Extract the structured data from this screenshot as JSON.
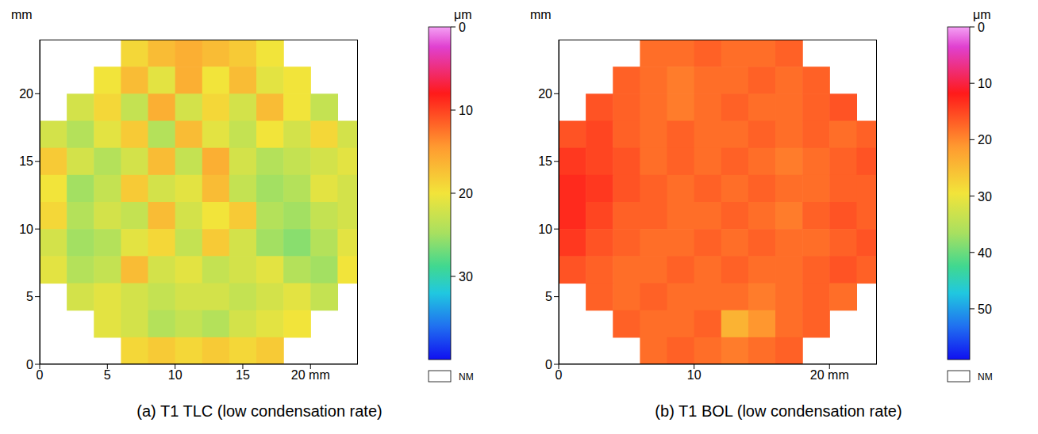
{
  "chart_data": [
    {
      "type": "heatmap",
      "title": "(a) T1 TLC (low condensation rate)",
      "ylabel": "mm",
      "xlim": [
        0,
        23.5
      ],
      "ylim": [
        0,
        24
      ],
      "xticks": [
        0,
        5,
        10,
        15,
        {
          "value": 20,
          "label": "20 mm"
        }
      ],
      "yticks": [
        0,
        5,
        10,
        15,
        20
      ],
      "x": [
        1,
        3,
        5,
        7,
        9,
        11,
        13,
        15,
        17,
        19,
        21,
        23
      ],
      "y": [
        23,
        21,
        19,
        17,
        15,
        13,
        11,
        9,
        7,
        5,
        3,
        1
      ],
      "cells": [
        [
          null,
          null,
          null,
          19,
          17,
          16,
          17,
          18,
          20,
          null,
          null,
          null
        ],
        [
          null,
          null,
          20,
          17,
          21,
          16,
          20,
          17,
          21,
          20,
          null,
          null
        ],
        [
          null,
          22,
          19,
          23,
          16,
          22,
          19,
          22,
          17,
          20,
          23,
          null
        ],
        [
          22,
          24,
          21,
          18,
          24,
          17,
          21,
          23,
          20,
          22,
          19,
          22
        ],
        [
          18,
          22,
          24,
          22,
          17,
          23,
          16,
          22,
          24,
          23,
          22,
          21
        ],
        [
          20,
          25,
          23,
          18,
          22,
          21,
          17,
          23,
          25,
          24,
          21,
          22
        ],
        [
          19,
          24,
          22,
          23,
          17,
          22,
          20,
          18,
          24,
          25,
          23,
          22
        ],
        [
          22,
          25,
          24,
          21,
          19,
          23,
          18,
          22,
          25,
          26,
          24,
          21
        ],
        [
          21,
          24,
          23,
          17,
          22,
          21,
          23,
          22,
          21,
          24,
          25,
          20
        ],
        [
          null,
          22,
          21,
          22,
          23,
          22,
          22,
          23,
          22,
          21,
          23,
          null
        ],
        [
          null,
          null,
          21,
          22,
          24,
          23,
          24,
          22,
          21,
          20,
          null,
          null
        ],
        [
          null,
          null,
          null,
          19,
          18,
          19,
          18,
          19,
          18,
          null,
          null,
          null
        ]
      ],
      "colorbar": {
        "label": "μm",
        "range": [
          0,
          40
        ],
        "ticks": [
          0,
          10,
          20,
          30
        ]
      },
      "missing_label": "NM"
    },
    {
      "type": "heatmap",
      "title": "(b) T1 BOL (low condensation rate)",
      "ylabel": "mm",
      "xlim": [
        0,
        23.5
      ],
      "ylim": [
        0,
        24
      ],
      "xticks": [
        0,
        10,
        {
          "value": 20,
          "label": "20 mm"
        }
      ],
      "yticks": [
        0,
        5,
        10,
        15,
        20
      ],
      "x": [
        1,
        3,
        5,
        7,
        9,
        11,
        13,
        15,
        17,
        19,
        21,
        23
      ],
      "y": [
        23,
        21,
        19,
        17,
        15,
        13,
        11,
        9,
        7,
        5,
        3,
        1
      ],
      "cells": [
        [
          null,
          null,
          null,
          18,
          18,
          17,
          18,
          18,
          17,
          null,
          null,
          null
        ],
        [
          null,
          null,
          17,
          18,
          19,
          18,
          18,
          17,
          18,
          17,
          null,
          null
        ],
        [
          null,
          16,
          17,
          18,
          19,
          18,
          17,
          18,
          18,
          17,
          16,
          null
        ],
        [
          16,
          15,
          17,
          18,
          17,
          18,
          18,
          17,
          18,
          17,
          18,
          17
        ],
        [
          14,
          15,
          16,
          18,
          17,
          18,
          17,
          18,
          19,
          18,
          17,
          16
        ],
        [
          13,
          14,
          16,
          17,
          18,
          17,
          18,
          17,
          18,
          18,
          17,
          17
        ],
        [
          13,
          15,
          17,
          17,
          18,
          18,
          17,
          18,
          19,
          17,
          16,
          17
        ],
        [
          14,
          16,
          17,
          18,
          18,
          17,
          18,
          17,
          18,
          18,
          17,
          16
        ],
        [
          16,
          17,
          18,
          18,
          17,
          18,
          17,
          18,
          18,
          17,
          16,
          17
        ],
        [
          null,
          17,
          18,
          17,
          18,
          18,
          18,
          19,
          18,
          17,
          18,
          null
        ],
        [
          null,
          null,
          17,
          18,
          18,
          17,
          24,
          21,
          18,
          17,
          null,
          null
        ],
        [
          null,
          null,
          null,
          18,
          17,
          18,
          19,
          18,
          17,
          null,
          null,
          null
        ]
      ],
      "colorbar": {
        "label": "μm",
        "range": [
          0,
          59
        ],
        "ticks": [
          0,
          10,
          20,
          30,
          40,
          50
        ]
      },
      "missing_label": "NM"
    }
  ]
}
